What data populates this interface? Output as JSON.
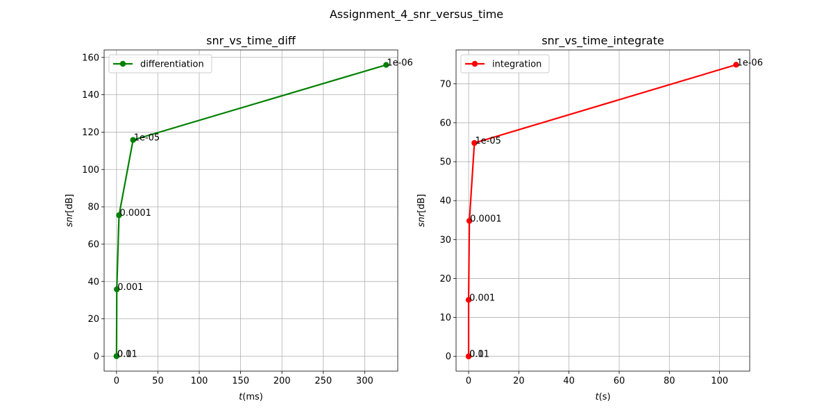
{
  "figure": {
    "suptitle": "Assignment_4_snr_versus_time"
  },
  "chart_data": [
    {
      "type": "line",
      "title": "snr_vs_time_diff",
      "xlabel_italic": "t",
      "xlabel_unit": "(ms)",
      "ylabel_italic": "snr",
      "ylabel_unit": "[dB]",
      "xlim": [
        -15,
        340
      ],
      "ylim": [
        -8,
        164
      ],
      "xticks": [
        0,
        50,
        100,
        150,
        200,
        250,
        300
      ],
      "yticks": [
        0,
        20,
        40,
        60,
        80,
        100,
        120,
        140,
        160
      ],
      "grid": true,
      "legend_position": "upper-left",
      "series": [
        {
          "name": "differentiation",
          "color": "#008000",
          "x": [
            0.0,
            0.0,
            0.3,
            3.0,
            20.0,
            326.0
          ],
          "y": [
            0.0,
            0.0,
            35.8,
            75.5,
            115.8,
            156.0
          ],
          "annotations": [
            "0.1",
            "0.01",
            "0.001",
            "0.0001",
            "1e-05",
            "1e-06"
          ]
        }
      ]
    },
    {
      "type": "line",
      "title": "snr_vs_time_integrate",
      "xlabel_italic": "t",
      "xlabel_unit": "(s)",
      "ylabel_italic": "snr",
      "ylabel_unit": "[dB]",
      "xlim": [
        -5,
        112
      ],
      "ylim": [
        -3.8,
        78.7
      ],
      "xticks": [
        0,
        20,
        40,
        60,
        80,
        100
      ],
      "yticks": [
        0,
        10,
        20,
        30,
        40,
        50,
        60,
        70
      ],
      "grid": true,
      "legend_position": "upper-left",
      "series": [
        {
          "name": "integration",
          "color": "#ff0000",
          "x": [
            0.0,
            0.0,
            0.0,
            0.3,
            2.3,
            106.6
          ],
          "y": [
            0.0,
            0.0,
            14.5,
            34.8,
            54.8,
            74.9
          ],
          "annotations": [
            "0.1",
            "0.01",
            "0.001",
            "0.0001",
            "1e-05",
            "1e-06"
          ]
        }
      ]
    }
  ]
}
